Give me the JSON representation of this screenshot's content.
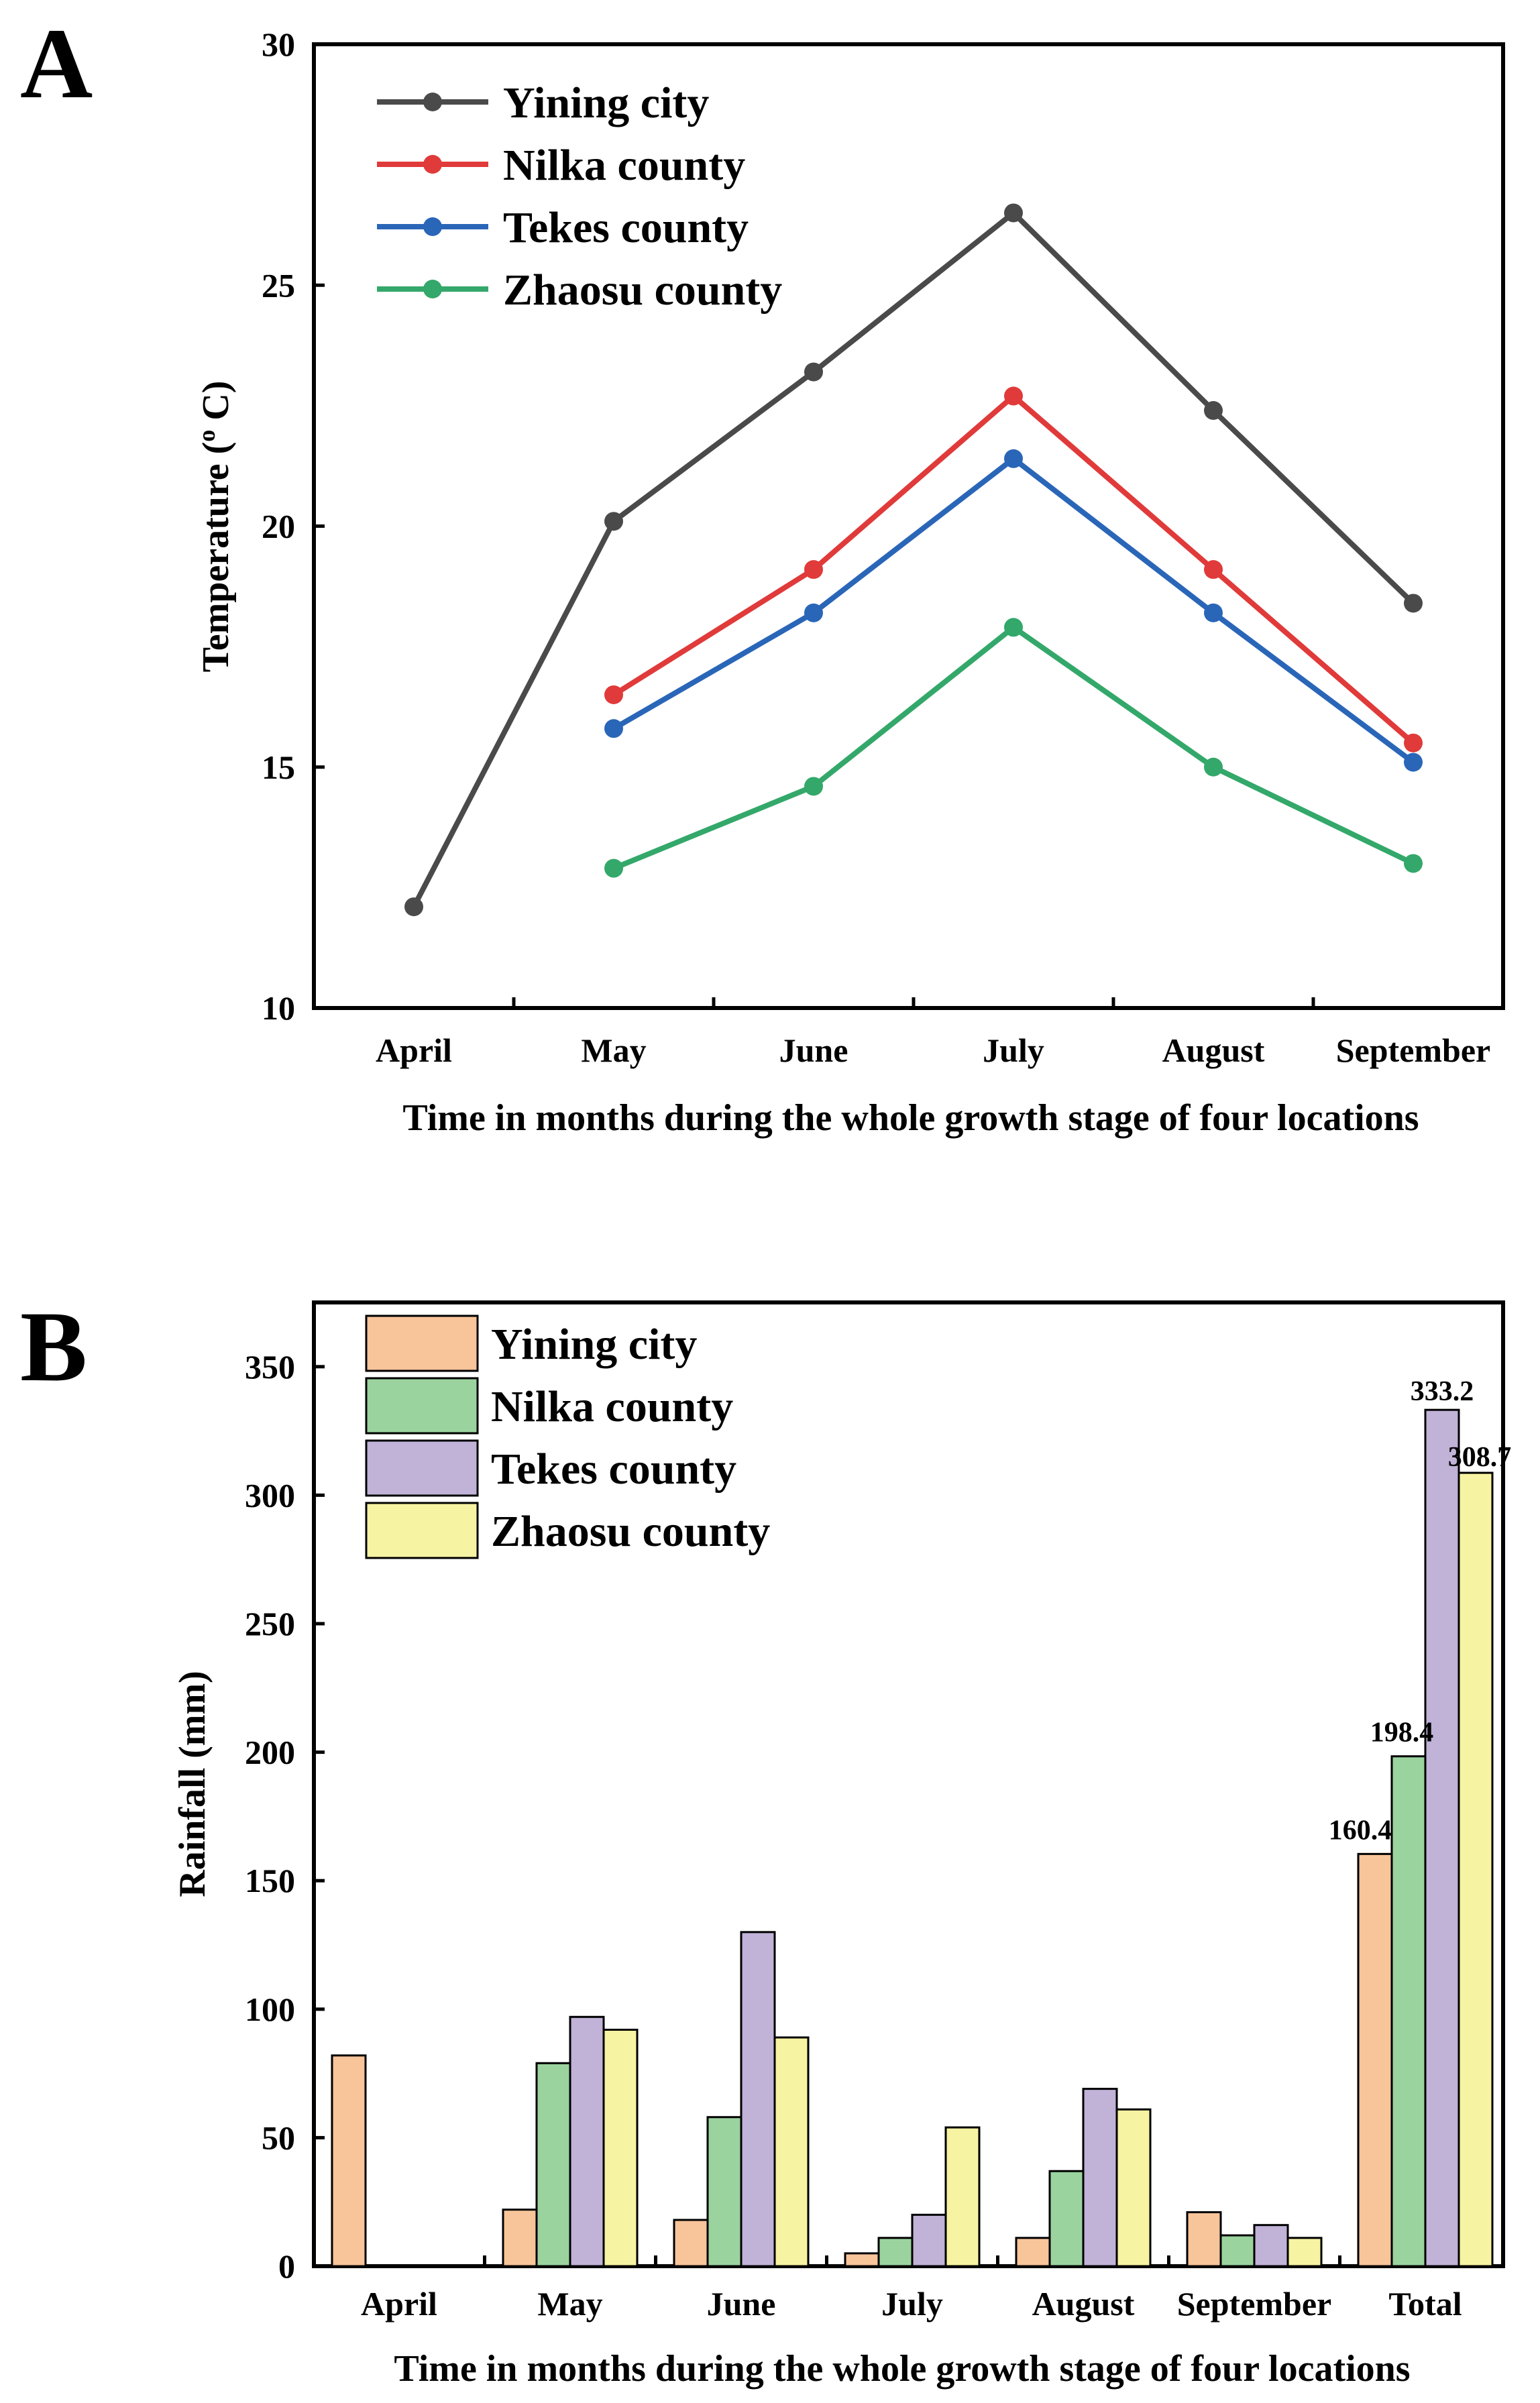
{
  "colors": {
    "yining_line": "#4a4a4a",
    "nilka_line": "#e03a3a",
    "tekes_line": "#2a66b8",
    "zhaosu_line": "#33a86a",
    "yining_bar": "#f8c49a",
    "nilka_bar": "#9bd39e",
    "tekes_bar": "#c1b2d8",
    "zhaosu_bar": "#f6f3a2"
  },
  "chart_data": [
    {
      "panel": "A",
      "type": "line",
      "categories": [
        "April",
        "May",
        "June",
        "July",
        "August",
        "September"
      ],
      "series": [
        {
          "name": "Yining city",
          "color": "#4a4a4a",
          "values": [
            12.1,
            20.1,
            23.2,
            26.5,
            22.4,
            18.4
          ]
        },
        {
          "name": "Nilka county",
          "color": "#e03a3a",
          "values": [
            null,
            16.5,
            19.1,
            22.7,
            19.1,
            15.5
          ]
        },
        {
          "name": "Tekes county",
          "color": "#2a66b8",
          "values": [
            null,
            15.8,
            18.2,
            21.4,
            18.2,
            15.1
          ]
        },
        {
          "name": "Zhaosu county",
          "color": "#33a86a",
          "values": [
            null,
            12.9,
            14.6,
            17.9,
            15.0,
            13.0
          ]
        }
      ],
      "title": "",
      "xlabel": "Time in months during the whole growth stage of four locations",
      "ylabel": "Temperature (",
      "ylabel_sup": "o",
      "ylabel_end": " C)",
      "ylim": [
        10,
        30
      ],
      "yticks": [
        10,
        15,
        20,
        25,
        30
      ],
      "legend": "top-left",
      "grid": false
    },
    {
      "panel": "B",
      "type": "bar",
      "categories": [
        "April",
        "May",
        "June",
        "July",
        "August",
        "September",
        "Total"
      ],
      "series": [
        {
          "name": "Yining city",
          "color": "#f8c49a",
          "values": [
            82,
            22,
            18,
            5,
            11,
            21,
            160.4
          ]
        },
        {
          "name": "Nilka county",
          "color": "#9bd39e",
          "values": [
            0,
            79,
            58,
            11,
            37,
            12,
            198.4
          ]
        },
        {
          "name": "Tekes county",
          "color": "#c1b2d8",
          "values": [
            0,
            97,
            130,
            20,
            69,
            16,
            333.2
          ]
        },
        {
          "name": "Zhaosu county",
          "color": "#f6f3a2",
          "values": [
            0,
            92,
            89,
            54,
            61,
            11,
            308.7
          ]
        }
      ],
      "total_labels": [
        "160.4",
        "198.4",
        "333.2",
        "308.7"
      ],
      "title": "",
      "xlabel": "Time in months during the whole growth stage of four locations",
      "ylabel": "Rainfall (mm)",
      "ylim": [
        0,
        375
      ],
      "yticks": [
        0,
        50,
        100,
        150,
        200,
        250,
        300,
        350
      ],
      "legend": "top-left",
      "grid": false
    }
  ]
}
